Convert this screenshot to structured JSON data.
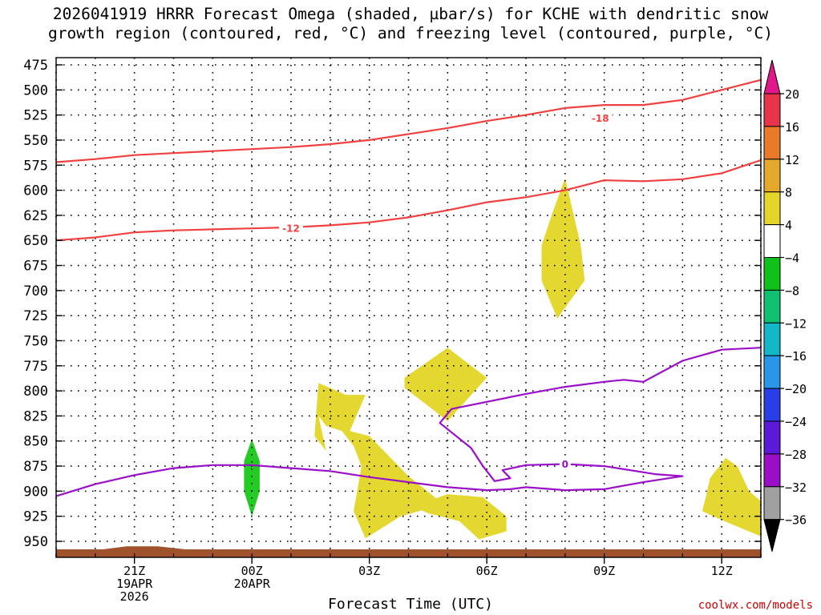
{
  "title_line1": "2026041919 HRRR Forecast Omega (shaded, µbar/s) for KCHE with dendritic snow",
  "title_line2": "growth region (contoured, red, °C) and freezing level (contoured, purple, °C)",
  "xlabel": "Forecast Time (UTC)",
  "credit": "coolwx.com/models",
  "chart_data": {
    "type": "contour",
    "y_axis": {
      "label": "",
      "ticks": [
        475,
        500,
        525,
        550,
        575,
        600,
        625,
        650,
        675,
        700,
        725,
        750,
        775,
        800,
        825,
        850,
        875,
        900,
        925,
        950
      ],
      "range": [
        465,
        962
      ],
      "unit": "hPa"
    },
    "x_axis": {
      "range": [
        19.0,
        37.0
      ],
      "ticks": [
        {
          "x": 21,
          "lines": [
            "21Z",
            "19APR",
            "2026"
          ]
        },
        {
          "x": 24,
          "lines": [
            "00Z",
            "20APR"
          ]
        },
        {
          "x": 27,
          "lines": [
            "03Z"
          ]
        },
        {
          "x": 30,
          "lines": [
            "06Z"
          ]
        },
        {
          "x": 33,
          "lines": [
            "09Z"
          ]
        },
        {
          "x": 36,
          "lines": [
            "12Z"
          ]
        }
      ]
    },
    "colorbar": {
      "labels": [
        "20",
        "16",
        "12",
        "8",
        "4",
        "−4",
        "−8",
        "−12",
        "−16",
        "−20",
        "−24",
        "−28",
        "−32",
        "−36"
      ],
      "colors": [
        "#e8344a",
        "#e87a2a",
        "#e3a82c",
        "#e4d52a",
        "#ffffff",
        "#11c01a",
        "#10c070",
        "#12b8c8",
        "#2a96e8",
        "#2a3ee8",
        "#5a1ad8",
        "#9a0ec8",
        "#a0a0a0"
      ],
      "top_arrow": "#e0188a",
      "bottom_arrow": "#000000"
    },
    "colors": {
      "dgz": "#f04040",
      "freezing": "#9a10c8",
      "positive_omega": "#e4d830",
      "negative_omega": "#22cc22",
      "terrain": "#a0522d"
    },
    "contours": [
      {
        "name": "dgz_-18",
        "label": "-18",
        "label_at": [
          32.9,
          528
        ],
        "points": [
          [
            19.0,
            572
          ],
          [
            20.0,
            569
          ],
          [
            21.0,
            565
          ],
          [
            22.0,
            563
          ],
          [
            23.0,
            561
          ],
          [
            24.0,
            559
          ],
          [
            25.0,
            557
          ],
          [
            26.0,
            554
          ],
          [
            27.0,
            550
          ],
          [
            28.0,
            544
          ],
          [
            29.0,
            538
          ],
          [
            30.0,
            531
          ],
          [
            31.0,
            525
          ],
          [
            32.0,
            518
          ],
          [
            33.0,
            515
          ],
          [
            34.0,
            515
          ],
          [
            35.0,
            510
          ],
          [
            36.0,
            500
          ],
          [
            37.0,
            490
          ]
        ]
      },
      {
        "name": "dgz_-12",
        "label": "-12",
        "label_at": [
          25.0,
          638
        ],
        "points": [
          [
            19.0,
            650
          ],
          [
            20.0,
            647
          ],
          [
            21.0,
            642
          ],
          [
            22.0,
            640
          ],
          [
            23.0,
            639
          ],
          [
            24.0,
            638
          ],
          [
            25.0,
            637
          ],
          [
            26.0,
            635
          ],
          [
            27.0,
            632
          ],
          [
            28.0,
            627
          ],
          [
            29.0,
            620
          ],
          [
            30.0,
            612
          ],
          [
            31.0,
            607
          ],
          [
            32.0,
            600
          ],
          [
            33.0,
            590
          ],
          [
            34.0,
            591
          ],
          [
            35.0,
            589
          ],
          [
            36.0,
            583
          ],
          [
            37.0,
            570
          ]
        ]
      },
      {
        "name": "freezing_0",
        "label": "0",
        "label_at": [
          32.0,
          873
        ],
        "points": [
          [
            19.0,
            905
          ],
          [
            20.0,
            893
          ],
          [
            21.0,
            884
          ],
          [
            22.0,
            877
          ],
          [
            23.0,
            874
          ],
          [
            24.0,
            874
          ],
          [
            25.0,
            877
          ],
          [
            26.0,
            880
          ],
          [
            27.0,
            886
          ],
          [
            28.0,
            891
          ],
          [
            29.0,
            896
          ],
          [
            30.0,
            899
          ],
          [
            30.6,
            898
          ],
          [
            31.0,
            896
          ],
          [
            32.0,
            899
          ],
          [
            33.0,
            898
          ],
          [
            34.0,
            891
          ],
          [
            35.0,
            885
          ],
          [
            34.3,
            883
          ],
          [
            33.0,
            875
          ],
          [
            32.0,
            873
          ],
          [
            31.0,
            874
          ],
          [
            30.4,
            879
          ],
          [
            30.6,
            887
          ],
          [
            30.2,
            890
          ],
          [
            29.9,
            875
          ],
          [
            29.6,
            857
          ],
          [
            28.8,
            832
          ],
          [
            29.1,
            818
          ],
          [
            31.0,
            803
          ],
          [
            32.0,
            796
          ],
          [
            33.0,
            791
          ],
          [
            33.5,
            789
          ],
          [
            34.0,
            791
          ],
          [
            35.0,
            770
          ],
          [
            36.0,
            759
          ],
          [
            37.0,
            757
          ]
        ]
      }
    ],
    "omega_regions": [
      {
        "name": "omega_pos_1",
        "value": "4 to 8",
        "points": [
          [
            25.7,
            792
          ],
          [
            26.4,
            804
          ],
          [
            26.9,
            804
          ],
          [
            26.5,
            840
          ],
          [
            27.0,
            845
          ],
          [
            28.0,
            885
          ],
          [
            28.9,
            913
          ],
          [
            27.8,
            925
          ],
          [
            26.9,
            947
          ],
          [
            26.6,
            920
          ],
          [
            26.8,
            875
          ],
          [
            26.6,
            855
          ],
          [
            26.3,
            840
          ],
          [
            25.9,
            835
          ],
          [
            25.7,
            825
          ],
          [
            25.9,
            860
          ],
          [
            25.6,
            845
          ]
        ]
      },
      {
        "name": "omega_pos_2",
        "value": "4 to 8",
        "points": [
          [
            27.9,
            787
          ],
          [
            29.0,
            757
          ],
          [
            30.0,
            787
          ],
          [
            29.0,
            830
          ],
          [
            27.9,
            797
          ]
        ]
      },
      {
        "name": "omega_pos_3",
        "value": "4 to 8",
        "points": [
          [
            28.1,
            915
          ],
          [
            29.0,
            903
          ],
          [
            29.9,
            906
          ],
          [
            30.5,
            925
          ],
          [
            30.5,
            940
          ],
          [
            29.8,
            948
          ],
          [
            29.3,
            930
          ],
          [
            28.5,
            922
          ]
        ]
      },
      {
        "name": "omega_pos_4",
        "value": "4 to 8",
        "points": [
          [
            32.0,
            588
          ],
          [
            32.4,
            655
          ],
          [
            32.5,
            690
          ],
          [
            31.8,
            728
          ],
          [
            31.4,
            690
          ],
          [
            31.4,
            655
          ],
          [
            31.7,
            620
          ]
        ]
      },
      {
        "name": "omega_pos_5",
        "value": "4 to 8",
        "points": [
          [
            36.1,
            867
          ],
          [
            36.4,
            875
          ],
          [
            36.7,
            900
          ],
          [
            37.0,
            910
          ],
          [
            37.0,
            945
          ],
          [
            36.2,
            932
          ],
          [
            35.5,
            920
          ],
          [
            35.6,
            905
          ],
          [
            35.7,
            887
          ]
        ]
      },
      {
        "name": "omega_neg_1",
        "value": "-4 to -8",
        "points": [
          [
            24.0,
            848
          ],
          [
            24.2,
            870
          ],
          [
            24.2,
            900
          ],
          [
            24.0,
            925
          ],
          [
            23.8,
            900
          ],
          [
            23.8,
            870
          ]
        ]
      }
    ],
    "terrain": {
      "base_pressure": 962,
      "profile": [
        [
          19.0,
          958
        ],
        [
          20.2,
          958
        ],
        [
          20.8,
          955
        ],
        [
          21.6,
          955
        ],
        [
          22.3,
          958
        ],
        [
          37.0,
          958
        ]
      ]
    }
  }
}
